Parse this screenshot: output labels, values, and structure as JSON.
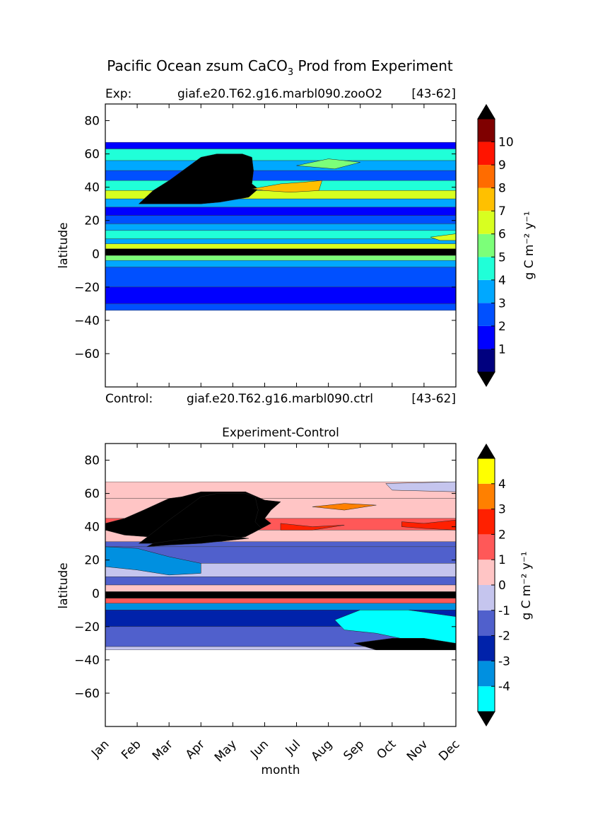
{
  "figure": {
    "title_main": "Pacific Ocean zsum CaCO",
    "title_sub": "3",
    "title_tail": " Prod from Experiment"
  },
  "colors": {
    "top_levels": [
      "#00007f",
      "#0000ff",
      "#0050ff",
      "#00a8ff",
      "#20ffd8",
      "#7cff79",
      "#d8ff20",
      "#ffc000",
      "#ff6c00",
      "#ff1400",
      "#7f0000"
    ],
    "top_under": "#000000",
    "top_over": "#000000",
    "diff_levels": [
      "#00ffff",
      "#0090e0",
      "#0022aa",
      "#5060cc",
      "#c5c5ee",
      "#ffc5c5",
      "#ff5858",
      "#ff2000",
      "#ff8000",
      "#ffff00"
    ],
    "diff_under": "#000000",
    "diff_over": "#000000"
  },
  "chart_data": [
    {
      "type": "heatmap",
      "title_left": "Exp:",
      "title_center": "giaf.e20.T62.g16.marbl090.zooO2",
      "title_right": "[43-62]",
      "under_left": "Control:",
      "under_center": "giaf.e20.T62.g16.marbl090.ctrl",
      "under_right": "[43-62]",
      "xlabel": "",
      "ylabel": "latitude",
      "xlim": [
        0,
        11
      ],
      "ylim": [
        -80,
        90
      ],
      "yticks": [
        80,
        60,
        40,
        20,
        0,
        -20,
        -40,
        -60
      ],
      "ytick_labels": [
        "80",
        "60",
        "40",
        "20",
        "0",
        "−20",
        "−40",
        "−60"
      ],
      "data_extent": {
        "lat_min": -34,
        "lat_max": 67
      },
      "colorbar": {
        "label": "g C m⁻² y⁻¹",
        "boundaries": [
          0,
          1,
          2,
          3,
          4,
          5,
          6,
          7,
          8,
          9,
          10,
          11
        ],
        "tick_values": [
          1,
          2,
          3,
          4,
          5,
          6,
          7,
          8,
          9,
          10
        ],
        "tick_labels": [
          "1",
          "2",
          "3",
          "4",
          "5",
          "6",
          "7",
          "8",
          "9",
          "10"
        ]
      },
      "bands": [
        {
          "lat": [
            63,
            67
          ],
          "value": 1
        },
        {
          "lat": [
            56,
            63
          ],
          "value": 4
        },
        {
          "lat": [
            50,
            56
          ],
          "value": 3
        },
        {
          "lat": [
            44,
            50
          ],
          "value": 2
        },
        {
          "lat": [
            38,
            44
          ],
          "value": 4
        },
        {
          "lat": [
            33,
            38
          ],
          "value": 6
        },
        {
          "lat": [
            28,
            33
          ],
          "value": 3
        },
        {
          "lat": [
            23,
            28
          ],
          "value": 1
        },
        {
          "lat": [
            18,
            23
          ],
          "value": 2
        },
        {
          "lat": [
            14,
            18
          ],
          "value": 3
        },
        {
          "lat": [
            9,
            14
          ],
          "value": 4
        },
        {
          "lat": [
            6,
            9
          ],
          "value": 3
        },
        {
          "lat": [
            3,
            6
          ],
          "value": 6
        },
        {
          "lat": [
            -1,
            3
          ],
          "value": -1
        },
        {
          "lat": [
            -4,
            -1
          ],
          "value": 5
        },
        {
          "lat": [
            -8,
            -4
          ],
          "value": 3
        },
        {
          "lat": [
            -20,
            -8
          ],
          "value": 2
        },
        {
          "lat": [
            -30,
            -20
          ],
          "value": 1
        },
        {
          "lat": [
            -34,
            -30
          ],
          "value": 2
        }
      ],
      "blobs": [
        {
          "shape": [
            [
              1.05,
              30
            ],
            [
              1.5,
              38
            ],
            [
              2.0,
              44
            ],
            [
              2.5,
              51
            ],
            [
              3.0,
              58
            ],
            [
              3.5,
              60
            ],
            [
              4.3,
              60
            ],
            [
              4.6,
              58
            ],
            [
              4.65,
              50
            ],
            [
              4.6,
              42
            ],
            [
              4.8,
              39
            ],
            [
              4.5,
              34
            ],
            [
              3.6,
              31
            ],
            [
              3.0,
              30
            ],
            [
              2.0,
              30
            ]
          ],
          "value": -1
        },
        {
          "shape": [
            [
              4.6,
              39
            ],
            [
              5.5,
              42
            ],
            [
              6.2,
              43
            ],
            [
              6.8,
              44
            ],
            [
              6.7,
              38
            ],
            [
              5.8,
              37
            ],
            [
              5.0,
              38
            ]
          ],
          "value": 7
        },
        {
          "shape": [
            [
              6.0,
              53
            ],
            [
              7.0,
              57
            ],
            [
              8.0,
              55
            ],
            [
              7.2,
              51
            ]
          ],
          "value": 5
        },
        {
          "shape": [
            [
              10.2,
              10
            ],
            [
              11,
              12
            ],
            [
              11,
              8
            ],
            [
              10.5,
              8
            ]
          ],
          "value": 6
        }
      ]
    },
    {
      "type": "heatmap",
      "title_center": "Experiment-Control",
      "xlabel": "month",
      "ylabel": "latitude",
      "xlim": [
        0,
        11
      ],
      "ylim": [
        -80,
        90
      ],
      "x": [
        "Jan",
        "Feb",
        "Mar",
        "Apr",
        "May",
        "Jun",
        "Jul",
        "Aug",
        "Sep",
        "Oct",
        "Nov",
        "Dec"
      ],
      "yticks": [
        80,
        60,
        40,
        20,
        0,
        -20,
        -40,
        -60
      ],
      "ytick_labels": [
        "80",
        "60",
        "40",
        "20",
        "0",
        "−20",
        "−40",
        "−60"
      ],
      "data_extent": {
        "lat_min": -34,
        "lat_max": 67
      },
      "colorbar": {
        "label": "g C m⁻² y⁻¹",
        "boundaries": [
          -5,
          -4,
          -3,
          -2,
          -1,
          0,
          1,
          2,
          3,
          4,
          5
        ],
        "tick_values": [
          -4,
          -3,
          -2,
          -1,
          0,
          1,
          2,
          3,
          4
        ],
        "tick_labels": [
          "-4",
          "-3",
          "-2",
          "-1",
          "0",
          "1",
          "2",
          "3",
          "4"
        ]
      },
      "bands": [
        {
          "lat": [
            57,
            67
          ],
          "value": 0.5
        },
        {
          "lat": [
            45,
            57
          ],
          "value": 0.5
        },
        {
          "lat": [
            38,
            45
          ],
          "value": 1.5
        },
        {
          "lat": [
            31,
            38
          ],
          "value": 0.5
        },
        {
          "lat": [
            28,
            31
          ],
          "value": -1.5
        },
        {
          "lat": [
            18,
            28
          ],
          "value": -1.5
        },
        {
          "lat": [
            10,
            18
          ],
          "value": -0.5
        },
        {
          "lat": [
            5,
            10
          ],
          "value": -1.5
        },
        {
          "lat": [
            1,
            5
          ],
          "value": 0.5
        },
        {
          "lat": [
            -3,
            1
          ],
          "value": -6
        },
        {
          "lat": [
            -6,
            -3
          ],
          "value": 1.5
        },
        {
          "lat": [
            -10,
            -6
          ],
          "value": -3.5
        },
        {
          "lat": [
            -20,
            -10
          ],
          "value": -2.5
        },
        {
          "lat": [
            -32,
            -20
          ],
          "value": -1.5
        },
        {
          "lat": [
            -34,
            -32
          ],
          "value": -0.5
        }
      ],
      "blobs": [
        {
          "shape": [
            [
              0,
              42
            ],
            [
              0.6,
              45
            ],
            [
              1.2,
              50
            ],
            [
              2.0,
              57
            ],
            [
              2.4,
              58
            ],
            [
              3.0,
              61
            ],
            [
              4.4,
              61
            ],
            [
              5.0,
              56
            ],
            [
              5.5,
              55
            ],
            [
              5.2,
              50
            ],
            [
              5.0,
              45
            ],
            [
              5.2,
              42
            ],
            [
              4.6,
              36
            ],
            [
              3.4,
              33
            ],
            [
              2.0,
              33
            ],
            [
              0.6,
              35
            ],
            [
              0,
              38
            ]
          ],
          "value": 6
        },
        {
          "shape": [
            [
              1.05,
              30
            ],
            [
              1.6,
              38
            ],
            [
              2.0,
              44
            ],
            [
              2.5,
              51
            ],
            [
              3.0,
              58
            ],
            [
              3.5,
              60
            ],
            [
              4.4,
              60
            ],
            [
              4.7,
              58
            ],
            [
              4.8,
              50
            ],
            [
              4.7,
              43
            ],
            [
              4.9,
              39
            ],
            [
              4.4,
              34
            ],
            [
              3.4,
              31
            ],
            [
              2.2,
              30
            ]
          ],
          "value": -6
        },
        {
          "shape": [
            [
              1.3,
              28
            ],
            [
              2.0,
              29
            ],
            [
              3.0,
              30
            ],
            [
              4.0,
              32
            ],
            [
              4.5,
              33
            ],
            [
              3.5,
              35
            ],
            [
              2.2,
              32
            ],
            [
              1.5,
              30
            ]
          ],
          "value": -6
        },
        {
          "shape": [
            [
              0,
              28
            ],
            [
              1.0,
              27
            ],
            [
              2.0,
              22
            ],
            [
              3.0,
              18
            ],
            [
              3.0,
              12
            ],
            [
              2.0,
              11
            ],
            [
              1.0,
              14
            ],
            [
              0,
              16
            ]
          ],
          "value": -3.5
        },
        {
          "shape": [
            [
              8.0,
              -10
            ],
            [
              9.5,
              -10
            ],
            [
              11,
              -14
            ],
            [
              11,
              -32
            ],
            [
              10.5,
              -32
            ],
            [
              9.5,
              -28
            ],
            [
              8.5,
              -24
            ],
            [
              7.5,
              -22
            ],
            [
              7.2,
              -16
            ]
          ],
          "value": -4.5
        },
        {
          "shape": [
            [
              7.8,
              -30
            ],
            [
              9.0,
              -27
            ],
            [
              10.0,
              -27
            ],
            [
              11,
              -30
            ],
            [
              11,
              -34
            ],
            [
              8.5,
              -34
            ]
          ],
          "value": -6
        },
        {
          "shape": [
            [
              5.5,
              42
            ],
            [
              6.5,
              40
            ],
            [
              7.5,
              41
            ],
            [
              6.5,
              38
            ],
            [
              5.5,
              38
            ]
          ],
          "value": 2.5
        },
        {
          "shape": [
            [
              9.3,
              43
            ],
            [
              10.0,
              42
            ],
            [
              11,
              44
            ],
            [
              11,
              38
            ],
            [
              10,
              39
            ],
            [
              9.3,
              40
            ]
          ],
          "value": 2.5
        },
        {
          "shape": [
            [
              6.5,
              52
            ],
            [
              7.5,
              54
            ],
            [
              8.5,
              53
            ],
            [
              7.5,
              50
            ]
          ],
          "value": 3.5
        },
        {
          "shape": [
            [
              8.8,
              66
            ],
            [
              11,
              67
            ],
            [
              11,
              61
            ],
            [
              9.0,
              62
            ]
          ],
          "value": -0.5
        }
      ]
    }
  ]
}
